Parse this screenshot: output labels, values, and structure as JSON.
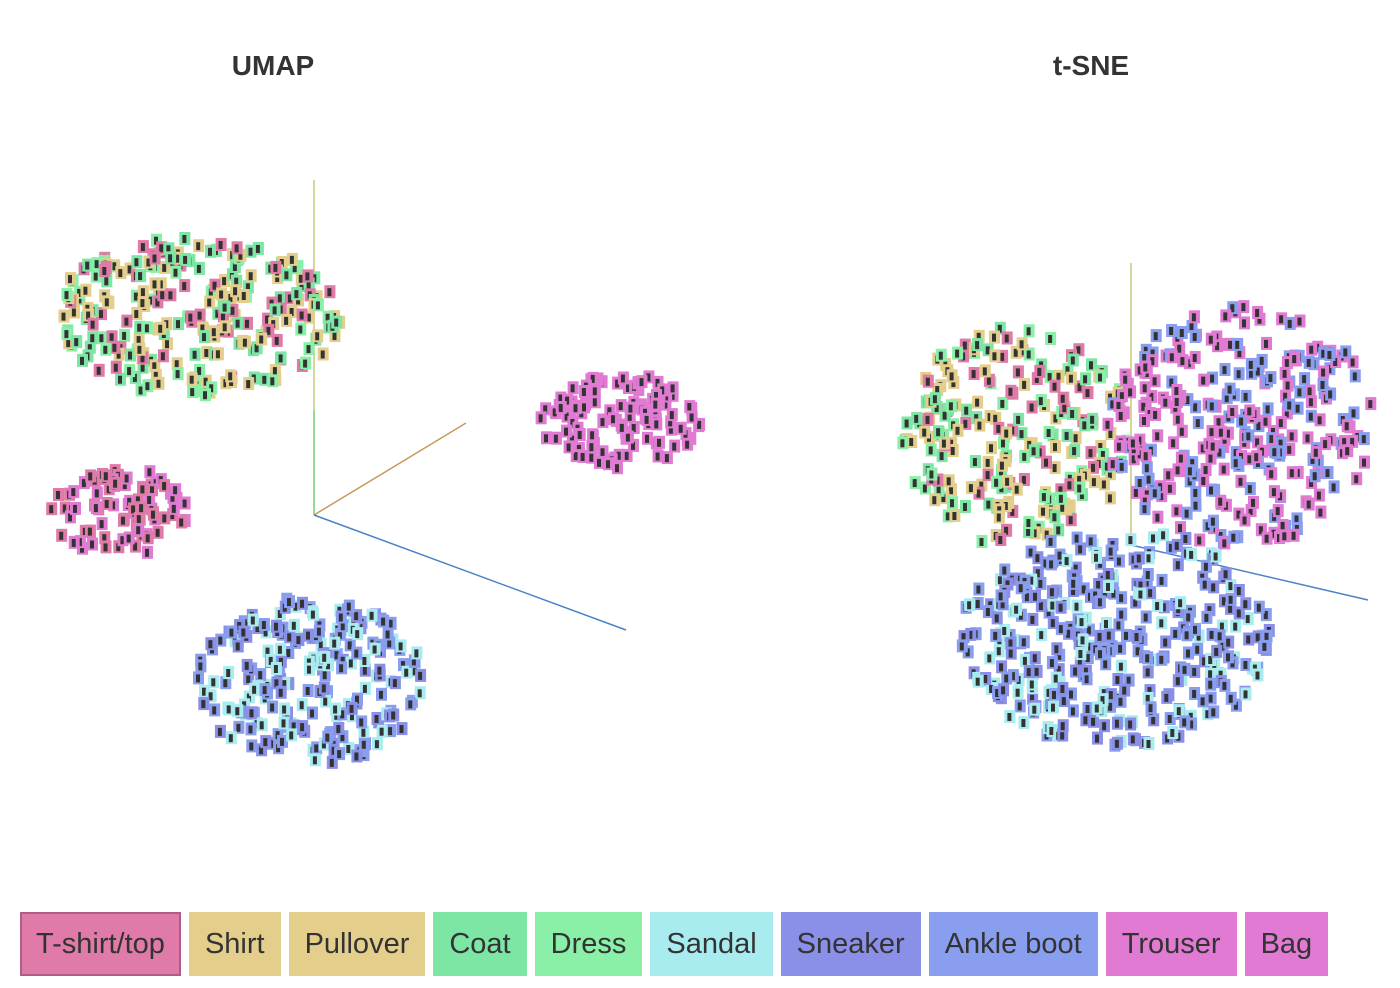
{
  "panels": [
    {
      "title": "UMAP"
    },
    {
      "title": "t-SNE"
    }
  ],
  "legend": [
    {
      "label": "T-shirt/top",
      "color": "#e07aa8",
      "selected": true
    },
    {
      "label": "Shirt",
      "color": "#e3cf8b"
    },
    {
      "label": "Pullover",
      "color": "#e3cf8b"
    },
    {
      "label": "Coat",
      "color": "#7de6a4"
    },
    {
      "label": "Dress",
      "color": "#8af0a8"
    },
    {
      "label": "Sandal",
      "color": "#a9ecf0"
    },
    {
      "label": "Sneaker",
      "color": "#8a8fe8"
    },
    {
      "label": "Ankle boot",
      "color": "#8a9ef0"
    },
    {
      "label": "Trouser",
      "color": "#e07ad2"
    },
    {
      "label": "Bag",
      "color": "#e07ad2"
    }
  ],
  "chart_data": [
    {
      "type": "scatter",
      "title": "UMAP",
      "projection": "3d",
      "clusters": [
        {
          "classes": [
            "T-shirt/top",
            "Shirt",
            "Pullover",
            "Coat",
            "Dress"
          ],
          "region": "upper-left"
        },
        {
          "classes": [
            "T-shirt/top",
            "Bag"
          ],
          "region": "left"
        },
        {
          "classes": [
            "Trouser"
          ],
          "region": "right"
        },
        {
          "classes": [
            "Sandal",
            "Sneaker",
            "Ankle boot"
          ],
          "region": "bottom"
        }
      ]
    },
    {
      "type": "scatter",
      "title": "t-SNE",
      "projection": "3d",
      "clusters": [
        {
          "classes": [
            "Coat",
            "Dress",
            "Shirt",
            "Pullover",
            "T-shirt/top"
          ],
          "region": "upper-left"
        },
        {
          "classes": [
            "Trouser",
            "Bag",
            "Ankle boot"
          ],
          "region": "upper-right"
        },
        {
          "classes": [
            "Sandal",
            "Sneaker",
            "Ankle boot"
          ],
          "region": "bottom"
        }
      ]
    }
  ]
}
